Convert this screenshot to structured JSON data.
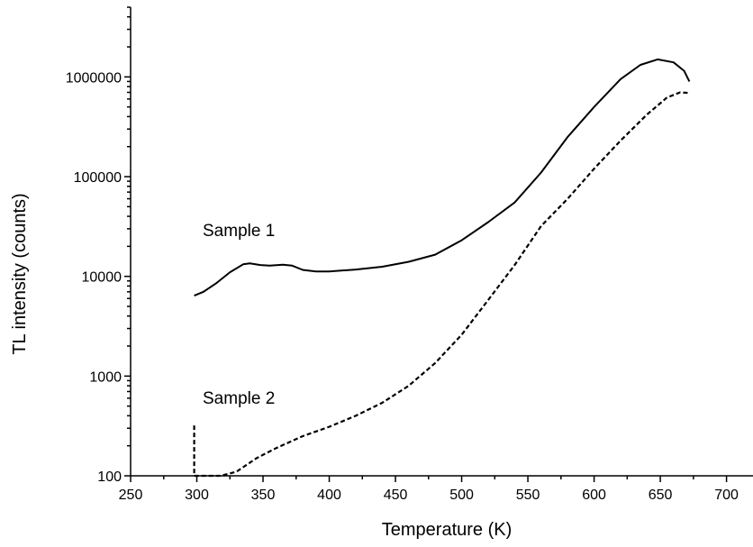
{
  "chart_data": {
    "type": "line",
    "xlabel": "Temperature (K)",
    "ylabel": "TL intensity (counts)",
    "xlim": [
      250,
      720
    ],
    "ylim": [
      100,
      5000000
    ],
    "y_scale": "log",
    "x_ticks": [
      250,
      300,
      350,
      400,
      450,
      500,
      550,
      600,
      650,
      700
    ],
    "y_ticks": [
      100,
      1000,
      10000,
      100000,
      1000000
    ],
    "y_tick_labels": [
      "100",
      "1000",
      "10000",
      "100000",
      "1000000"
    ],
    "grid": false,
    "annotations": [
      "Sample 1",
      "Sample 2"
    ],
    "series": [
      {
        "style": "solid",
        "x": [
          298,
          305,
          315,
          325,
          335,
          340,
          348,
          355,
          365,
          372,
          380,
          390,
          400,
          420,
          440,
          460,
          480,
          500,
          520,
          540,
          560,
          580,
          600,
          620,
          635,
          648,
          660,
          668,
          672
        ],
        "y": [
          6400,
          7000,
          8600,
          11000,
          13200,
          13500,
          13000,
          12800,
          13100,
          12800,
          11600,
          11200,
          11200,
          11700,
          12500,
          14000,
          16500,
          23000,
          35000,
          55000,
          110000,
          250000,
          500000,
          950000,
          1320000,
          1500000,
          1400000,
          1150000,
          900000
        ]
      },
      {
        "style": "dashed",
        "x": [
          298,
          298,
          318,
          330,
          345,
          360,
          380,
          400,
          420,
          440,
          460,
          480,
          500,
          520,
          540,
          560,
          580,
          600,
          620,
          640,
          655,
          665,
          672
        ],
        "y": [
          320,
          100,
          100,
          110,
          150,
          190,
          250,
          310,
          400,
          540,
          800,
          1350,
          2600,
          5800,
          13000,
          32000,
          60000,
          120000,
          230000,
          420000,
          620000,
          700000,
          690000
        ]
      }
    ]
  }
}
